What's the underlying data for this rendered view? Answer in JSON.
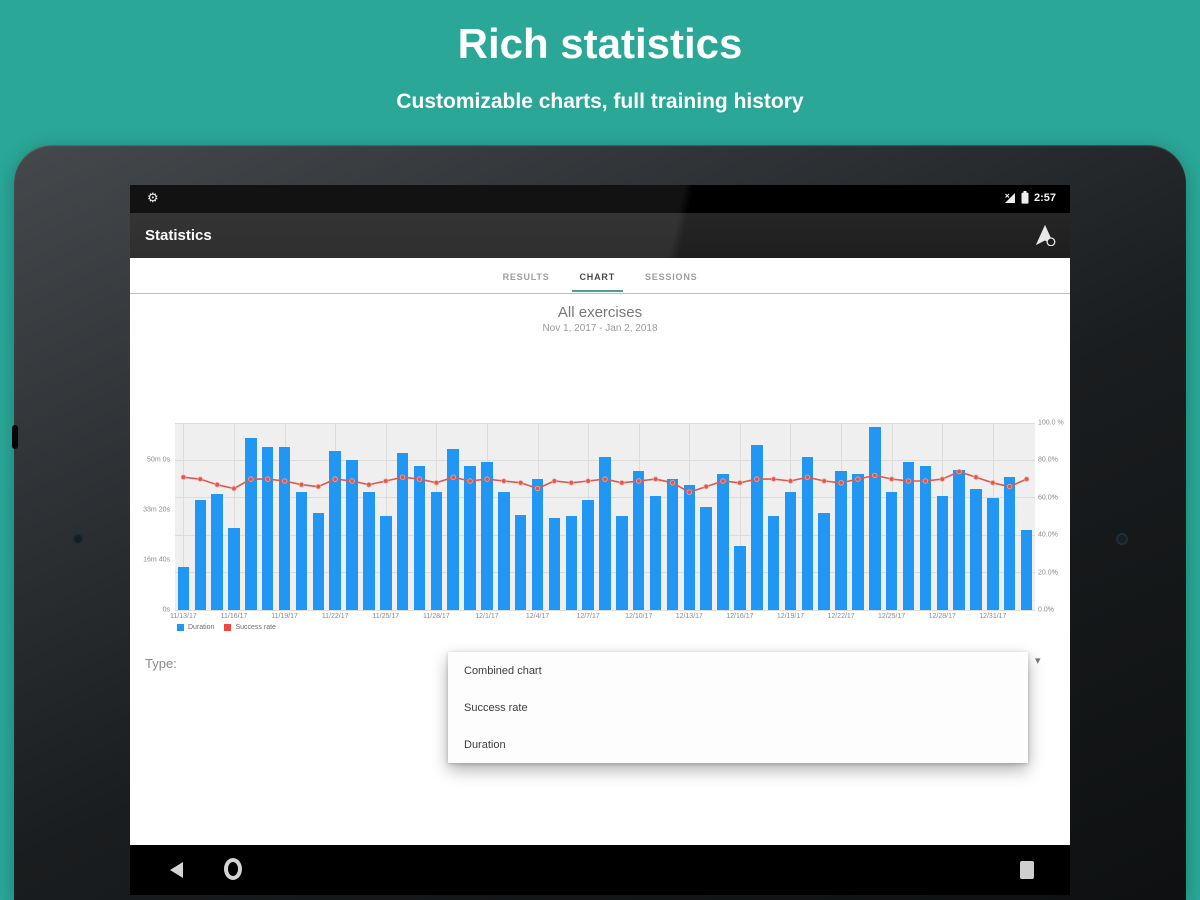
{
  "page": {
    "title": "Rich statistics",
    "subtitle": "Customizable charts, full training history",
    "background_color": "#2aa797"
  },
  "status_bar": {
    "time": "2:57"
  },
  "action_bar": {
    "title": "Statistics"
  },
  "tabs": [
    {
      "label": "RESULTS",
      "active": false
    },
    {
      "label": "CHART",
      "active": true
    },
    {
      "label": "SESSIONS",
      "active": false
    }
  ],
  "chart_header": {
    "title": "All exercises",
    "date_range": "Nov 1, 2017 - Jan 2, 2018"
  },
  "chart_data": {
    "type": "combined",
    "title": "All exercises",
    "subtitle": "Nov 1, 2017 - Jan 2, 2018",
    "grid": true,
    "x_tick_labels": [
      "11/13/17",
      "11/16/17",
      "11/19/17",
      "11/22/17",
      "11/25/17",
      "11/28/17",
      "12/1/17",
      "12/4/17",
      "12/7/17",
      "12/10/17",
      "12/13/17",
      "12/16/17",
      "12/19/17",
      "12/22/17",
      "12/25/17",
      "12/28/17",
      "12/31/17"
    ],
    "x_tick_every_n_bars": 3,
    "series": [
      {
        "name": "Duration",
        "type": "bar",
        "color": "#2196f3",
        "unit": "minutes",
        "values": [
          14.4,
          36.9,
          38.8,
          27.5,
          57.5,
          54.4,
          54.4,
          39.4,
          32.5,
          53.1,
          50,
          39.4,
          31.3,
          52.5,
          48.1,
          39.4,
          53.8,
          48.1,
          49.4,
          39.4,
          31.9,
          43.8,
          30.6,
          31.3,
          36.9,
          51.3,
          31.3,
          46.3,
          38.1,
          43.8,
          41.9,
          34.4,
          45.6,
          21.3,
          55,
          31.3,
          39.4,
          51.3,
          32.5,
          46.3,
          45.6,
          61.3,
          39.4,
          49.4,
          48.1,
          38.1,
          46.9,
          40.6,
          37.5,
          44.4,
          26.9
        ]
      },
      {
        "name": "Success rate",
        "type": "line",
        "color": "#e0584c",
        "unit": "%",
        "values": [
          71,
          70,
          67,
          65,
          70,
          70,
          69,
          67,
          66,
          70,
          69,
          67,
          69,
          71,
          70,
          68,
          71,
          69,
          70,
          69,
          68,
          65,
          69,
          68,
          69,
          70,
          68,
          69,
          70,
          68,
          63,
          66,
          69,
          68,
          70,
          70,
          69,
          71,
          69,
          68,
          70,
          72,
          70,
          69,
          69,
          70,
          74,
          71,
          68,
          66,
          70
        ]
      }
    ],
    "left_axis": {
      "unit": "duration",
      "labels": [
        "50m 0s",
        "33m 20s",
        "16m 40s",
        "0s"
      ],
      "tick_minutes": [
        50,
        33.333,
        16.667,
        0
      ],
      "max_minutes": 62.5
    },
    "right_axis": {
      "unit": "percent",
      "labels": [
        "100.0 %",
        "80.0%",
        "60.0%",
        "40.0%",
        "20.0%",
        "0.0%"
      ],
      "tick_percent": [
        100,
        80,
        60,
        40,
        20,
        0
      ],
      "min": 0,
      "max": 100
    },
    "legend": [
      {
        "label": "Duration",
        "color": "#2196f3"
      },
      {
        "label": "Success rate",
        "color": "#f0483e"
      }
    ]
  },
  "type_selector": {
    "label": "Type:"
  },
  "dropdown": {
    "options": [
      "Combined chart",
      "Success rate",
      "Duration"
    ]
  },
  "nav_bar": {
    "buttons": [
      "back",
      "home",
      "recents"
    ]
  }
}
